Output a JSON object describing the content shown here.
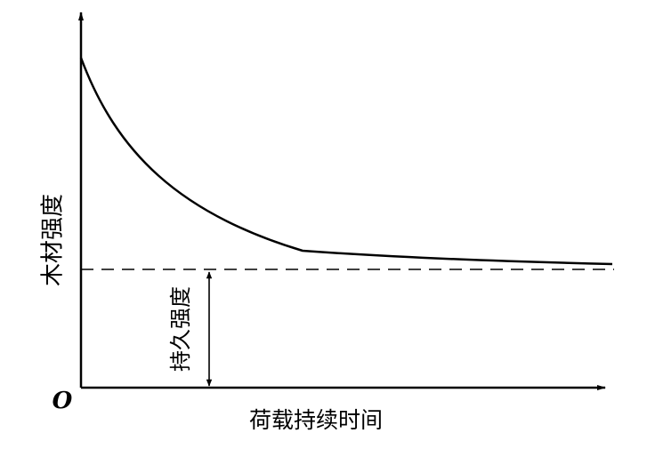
{
  "diagram": {
    "y_label": "木材强度",
    "x_label": "荷载持续时间",
    "origin": "O",
    "annotation": "持久强度"
  }
}
